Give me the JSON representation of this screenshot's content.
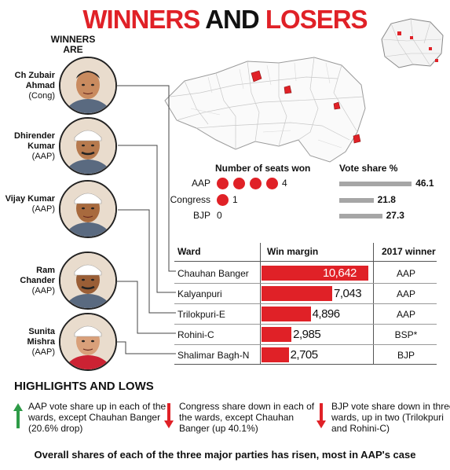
{
  "title": {
    "winners": "WINNERS",
    "and": "AND",
    "losers": "LOSERS"
  },
  "winners_label": "WINNERS ARE",
  "winners": [
    {
      "name": "Ch Zubair Ahmad",
      "party": "(Cong)"
    },
    {
      "name": "Dhirender Kumar",
      "party": "(AAP)"
    },
    {
      "name": "Vijay Kumar",
      "party": "(AAP)"
    },
    {
      "name": "Ram Chander",
      "party": "(AAP)"
    },
    {
      "name": "Sunita Mishra",
      "party": "(AAP)"
    }
  ],
  "colors": {
    "accent_red": "#e02127",
    "bar_grey": "#a6a6a6",
    "green_arrow": "#2e9b47"
  },
  "chart_data": [
    {
      "type": "bar",
      "title": "Number of seats won",
      "categories": [
        "AAP",
        "Congress",
        "BJP"
      ],
      "values": [
        4,
        1,
        0
      ]
    },
    {
      "type": "bar",
      "title": "Vote share %",
      "categories": [
        "AAP",
        "Congress",
        "BJP"
      ],
      "values": [
        46.1,
        21.8,
        27.3
      ]
    },
    {
      "type": "bar",
      "title": "Win margin",
      "headers": {
        "ward": "Ward",
        "margin": "Win margin",
        "winner_2017": "2017 winner"
      },
      "categories": [
        "Chauhan Banger",
        "Kalyanpuri",
        "Trilokpuri-E",
        "Rohini-C",
        "Shalimar Bagh-N"
      ],
      "values": [
        10642,
        7043,
        4896,
        2985,
        2705
      ],
      "value_labels": [
        "10,642",
        "7,043",
        "4,896",
        "2,985",
        "2,705"
      ],
      "winner_2017": [
        "AAP",
        "AAP",
        "AAP",
        "BSP*",
        "BJP"
      ]
    }
  ],
  "highlights": {
    "title": "HIGHLIGHTS AND LOWS",
    "items": [
      {
        "direction": "up",
        "text": "AAP vote share up in each of the wards, except Chauhan Banger (20.6% drop)"
      },
      {
        "direction": "down",
        "text": "Congress share down in each of the wards, except Chauhan Banger (up 40.1%)"
      },
      {
        "direction": "down",
        "text": "BJP vote share down in three wards, up in two (Trilokpuri and Rohini-C)"
      }
    ]
  },
  "footer": "Overall shares of each of the three major parties has risen, most in AAP's case"
}
